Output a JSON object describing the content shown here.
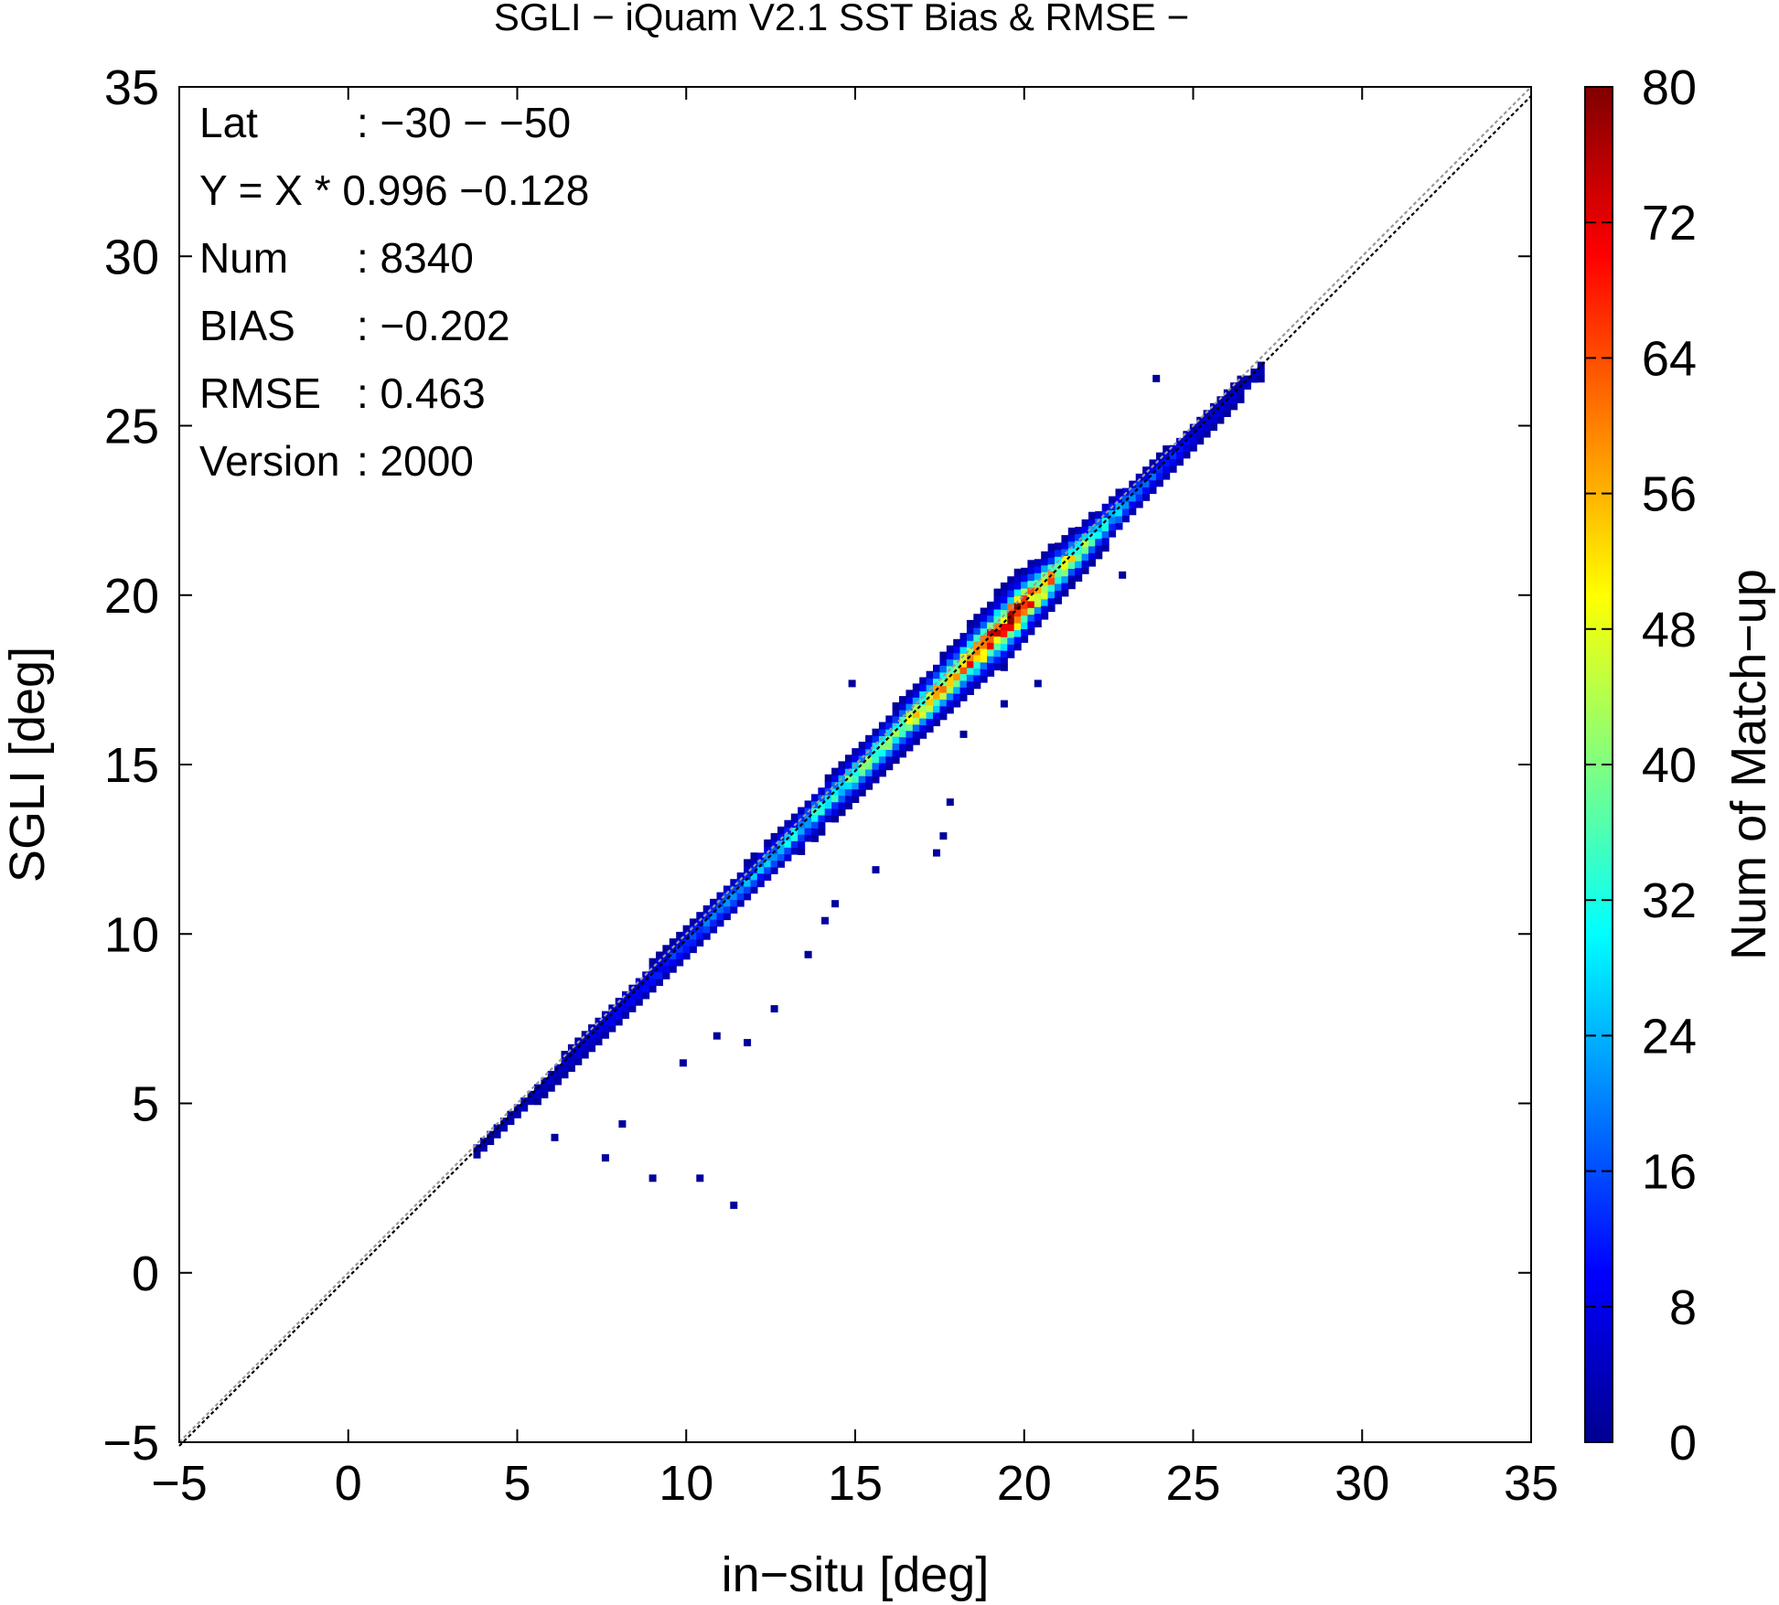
{
  "chart_data": {
    "type": "heatmap",
    "title": "SGLI − iQuam V2.1 SST Bias & RMSE  −",
    "xlabel": "in−situ [deg]",
    "ylabel": "SGLI [deg]",
    "xlim": [
      -5,
      35
    ],
    "ylim": [
      -5,
      35
    ],
    "x_ticks": [
      "−5",
      "0",
      "5",
      "10",
      "15",
      "20",
      "25",
      "30",
      "35"
    ],
    "y_ticks": [
      "−5",
      "0",
      "5",
      "10",
      "15",
      "20",
      "25",
      "30",
      "35"
    ],
    "grid": false,
    "colorbar": {
      "label": "Num of Match−up",
      "range": [
        0,
        80
      ],
      "ticks": [
        "0",
        "8",
        "16",
        "24",
        "32",
        "40",
        "48",
        "56",
        "64",
        "72",
        "80"
      ],
      "colormap": [
        "#00008f",
        "#0000ff",
        "#0080ff",
        "#00ffff",
        "#80ff80",
        "#ffff00",
        "#ff8000",
        "#ff0000",
        "#800000"
      ]
    },
    "reference_lines": [
      {
        "name": "1:1 line",
        "slope": 1.0,
        "intercept": 0.0,
        "style": "dotted",
        "color": "#999999"
      },
      {
        "name": "regression",
        "slope": 0.996,
        "intercept": -0.128,
        "style": "dotted",
        "color": "#000000"
      }
    ],
    "density_ridge": {
      "x_range": [
        3.7,
        27.0
      ],
      "peak_count_at_x": [
        [
          4,
          2
        ],
        [
          6,
          5
        ],
        [
          8,
          10
        ],
        [
          10,
          16
        ],
        [
          12,
          22
        ],
        [
          14,
          32
        ],
        [
          16,
          40
        ],
        [
          18,
          58
        ],
        [
          19.5,
          75
        ],
        [
          21,
          48
        ],
        [
          23,
          20
        ],
        [
          25,
          8
        ],
        [
          27,
          3
        ]
      ]
    },
    "outliers": [
      [
        8,
        4.3
      ],
      [
        6,
        3.9
      ],
      [
        9.8,
        6.1
      ],
      [
        10.8,
        6.9
      ],
      [
        11.7,
        6.7
      ],
      [
        12.5,
        7.7
      ],
      [
        13.5,
        9.3
      ],
      [
        14,
        10.3
      ],
      [
        14.3,
        10.8
      ],
      [
        15.5,
        11.8
      ],
      [
        17.3,
        12.3
      ],
      [
        17.5,
        12.8
      ],
      [
        17.7,
        13.8
      ],
      [
        18.1,
        15.8
      ],
      [
        19.3,
        16.7
      ],
      [
        20.3,
        17.3
      ],
      [
        21.3,
        20.3
      ],
      [
        22.8,
        20.5
      ],
      [
        23.8,
        26.3
      ],
      [
        14.8,
        17.3
      ],
      [
        7.5,
        3.3
      ],
      [
        8.9,
        2.7
      ],
      [
        10.3,
        2.7
      ],
      [
        11.3,
        1.9
      ]
    ],
    "stats": [
      {
        "label": "Lat",
        "value": ": −30 − −50"
      },
      {
        "label": "Y = X * 0.996 −0.128",
        "value": ""
      },
      {
        "label": "Num",
        "value": ": 8340"
      },
      {
        "label": "BIAS",
        "value": ": −0.202"
      },
      {
        "label": "RMSE",
        "value": ": 0.463"
      },
      {
        "label": "Version",
        "value": ": 2000"
      }
    ]
  }
}
